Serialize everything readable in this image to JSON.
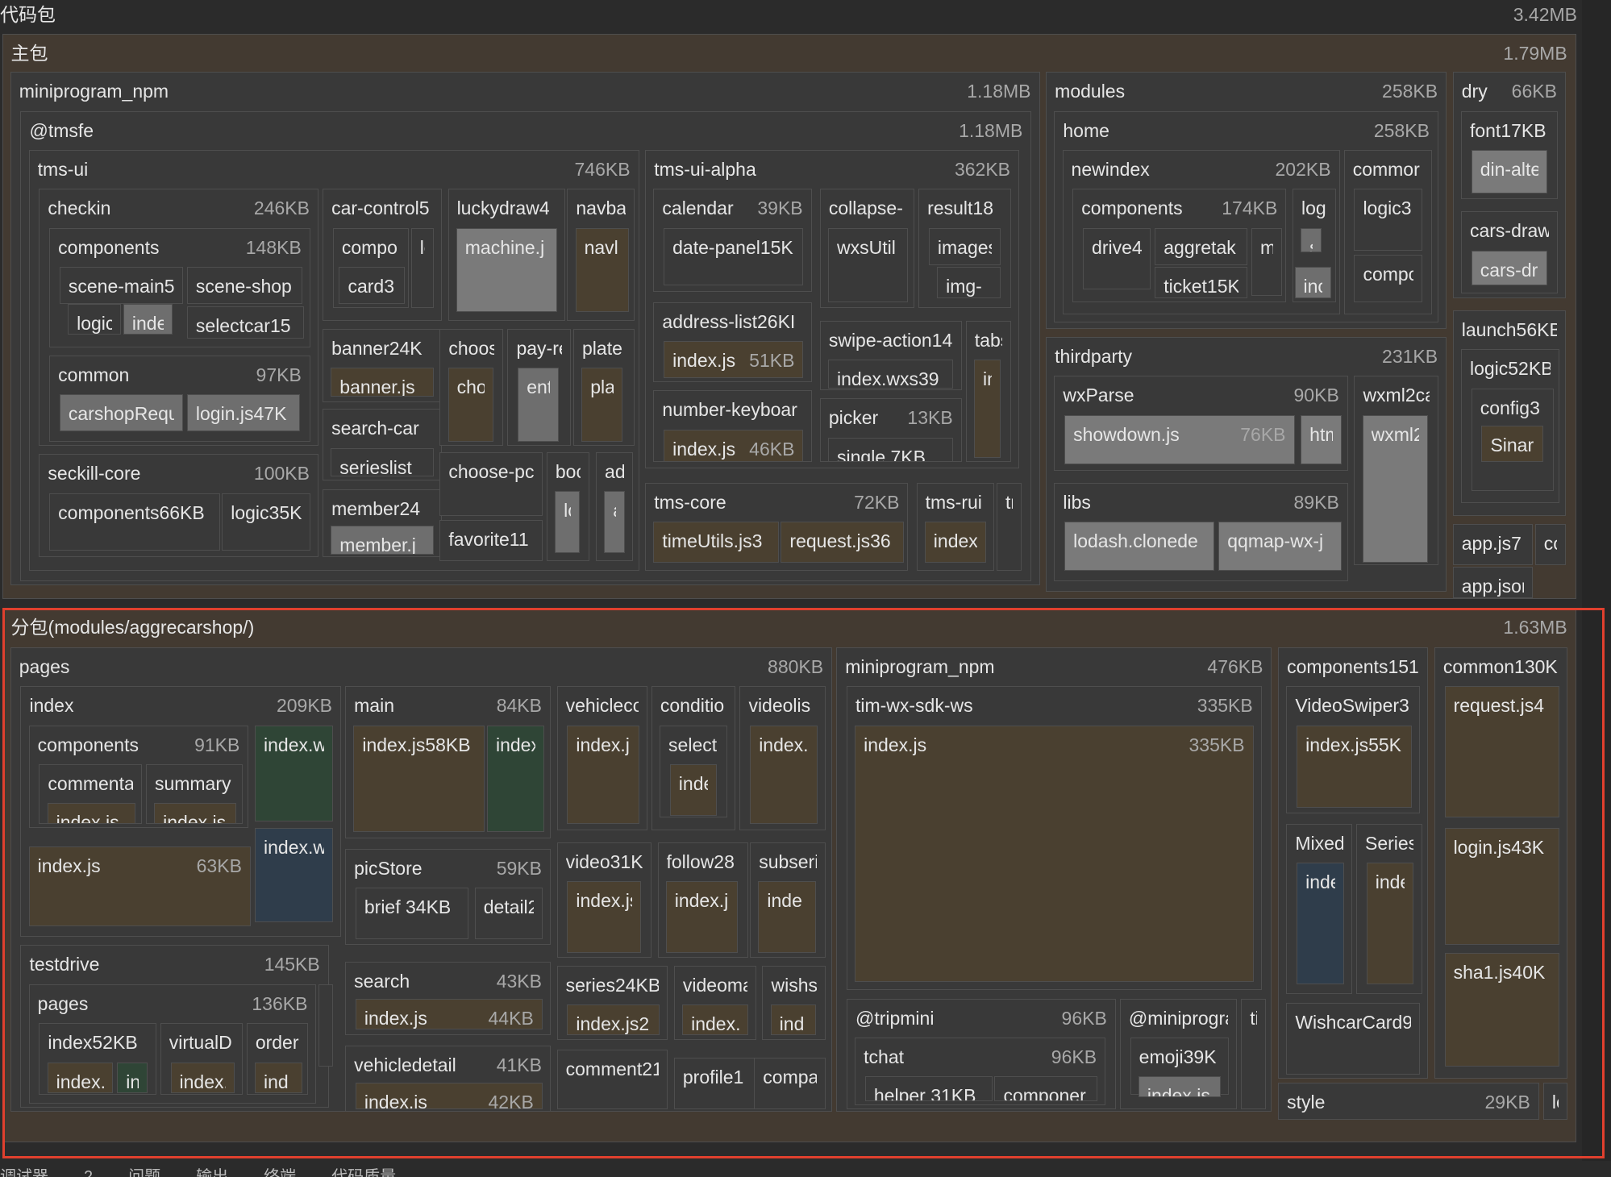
{
  "header": {
    "title": "代码包",
    "size": "3.42MB"
  },
  "nodes": [
    {
      "label": "主包",
      "size": "1.79MB",
      "color": "#433a31"
    },
    {
      "label": "miniprogram_npm",
      "size": "1.18MB"
    },
    {
      "label": "@tmsfe",
      "size": "1.18MB"
    },
    {
      "label": "tms-ui",
      "size": "746KB"
    },
    {
      "label": "checkin",
      "size": "246KB"
    },
    {
      "label": "components",
      "size": "148KB"
    },
    {
      "label": "scene-main5"
    },
    {
      "label": "scene-shop"
    },
    {
      "label": "logic"
    },
    {
      "label": "inde",
      "color": "#6e6e6e"
    },
    {
      "label": "selectcar15"
    },
    {
      "label": "common",
      "size": "97KB"
    },
    {
      "label": "carshopRequ",
      "color": "#6e6e6e"
    },
    {
      "label": "login.js47K",
      "color": "#6e6e6e"
    },
    {
      "label": "seckill-core",
      "size": "100KB"
    },
    {
      "label": "components66KB"
    },
    {
      "label": "logic35K"
    },
    {
      "label": "car-control5"
    },
    {
      "label": "compo"
    },
    {
      "label": "card3"
    },
    {
      "label": "lc"
    },
    {
      "label": "luckydraw4"
    },
    {
      "label": "machine.j",
      "color": "#7a7a7a"
    },
    {
      "label": "navba"
    },
    {
      "label": "navl",
      "color": "#4a4030"
    },
    {
      "label": "banner24K"
    },
    {
      "label": "banner.js",
      "color": "#4a4030"
    },
    {
      "label": "search-car"
    },
    {
      "label": "serieslist"
    },
    {
      "label": "member24"
    },
    {
      "label": "member.j",
      "color": "#6e6e6e"
    },
    {
      "label": "choos"
    },
    {
      "label": "cho",
      "color": "#4a4030"
    },
    {
      "label": "pay-re"
    },
    {
      "label": "enti",
      "color": "#6e6e6e"
    },
    {
      "label": "plate"
    },
    {
      "label": "pla",
      "color": "#4a4030"
    },
    {
      "label": "choose-pc"
    },
    {
      "label": "favorite11"
    },
    {
      "label": "boc"
    },
    {
      "label": "lc",
      "color": "#6e6e6e"
    },
    {
      "label": "adc"
    },
    {
      "label": "a",
      "color": "#6e6e6e"
    },
    {
      "label": "tms-ui-alpha",
      "size": "362KB"
    },
    {
      "label": "calendar",
      "size": "39KB"
    },
    {
      "label": "date-panel15K"
    },
    {
      "label": "collapse-"
    },
    {
      "label": "wxsUtil"
    },
    {
      "label": "result18"
    },
    {
      "label": "images"
    },
    {
      "label": "img-"
    },
    {
      "label": "address-list26KI"
    },
    {
      "label": "index.js",
      "size": "51KB",
      "color": "#4a4030"
    },
    {
      "label": "number-keyboar"
    },
    {
      "label": "index.js",
      "size": "46KB",
      "color": "#4a4030"
    },
    {
      "label": "swipe-action14"
    },
    {
      "label": "index.wxs39"
    },
    {
      "label": "tabs"
    },
    {
      "label": "in",
      "color": "#4a4030"
    },
    {
      "label": "picker",
      "size": "13KB"
    },
    {
      "label": "single 7KB"
    },
    {
      "label": "tms-core",
      "size": "72KB"
    },
    {
      "label": "timeUtils.js3",
      "color": "#4a4030"
    },
    {
      "label": "request.js36",
      "color": "#4a4030"
    },
    {
      "label": "tms-rui"
    },
    {
      "label": "index",
      "color": "#4a4030"
    },
    {
      "label": "tn"
    },
    {
      "label": "modules",
      "size": "258KB"
    },
    {
      "label": "home",
      "size": "258KB"
    },
    {
      "label": "newindex",
      "size": "202KB"
    },
    {
      "label": "components",
      "size": "174KB"
    },
    {
      "label": "drive4"
    },
    {
      "label": "aggretak"
    },
    {
      "label": "ticket15K"
    },
    {
      "label": "mc"
    },
    {
      "label": "log"
    },
    {
      "label": "s",
      "color": "#6e6e6e"
    },
    {
      "label": "inc",
      "color": "#6e6e6e"
    },
    {
      "label": "commor"
    },
    {
      "label": "logic3"
    },
    {
      "label": "compc"
    },
    {
      "label": "dry",
      "size": "66KB"
    },
    {
      "label": "font17KB"
    },
    {
      "label": "din-alte",
      "color": "#7a7a7a"
    },
    {
      "label": "cars-draw"
    },
    {
      "label": "cars-dr",
      "color": "#7a7a7a"
    },
    {
      "label": "launch56KB"
    },
    {
      "label": "logic52KB"
    },
    {
      "label": "config3"
    },
    {
      "label": "Sinar",
      "color": "#4a4030"
    },
    {
      "label": "app.js7"
    },
    {
      "label": "app.json"
    },
    {
      "label": "cor"
    },
    {
      "label": "thirdparty",
      "size": "231KB"
    },
    {
      "label": "wxParse",
      "size": "90KB"
    },
    {
      "label": "showdown.js",
      "size": "76KB",
      "color": "#7a7a7a"
    },
    {
      "label": "htm",
      "color": "#7a7a7a"
    },
    {
      "label": "wxml2ca"
    },
    {
      "label": "wxml2",
      "color": "#7a7a7a"
    },
    {
      "label": "libs",
      "size": "89KB"
    },
    {
      "label": "lodash.clonede",
      "color": "#7a7a7a"
    },
    {
      "label": "qqmap-wx-j",
      "color": "#7a7a7a"
    },
    {
      "label": "分包(modules/aggrecarshop/)",
      "size": "1.63MB",
      "color": "#433a31"
    },
    {
      "label": "pages",
      "size": "880KB"
    },
    {
      "label": "index",
      "size": "209KB"
    },
    {
      "label": "components",
      "size": "91KB"
    },
    {
      "label": "commenta"
    },
    {
      "label": "index.js",
      "color": "#4a4030"
    },
    {
      "label": "summary"
    },
    {
      "label": "index.js",
      "color": "#4a4030"
    },
    {
      "label": "index.w",
      "color": "#2f4536"
    },
    {
      "label": "index.w",
      "color": "#2f3d4b"
    },
    {
      "label": "index.js",
      "size": "63KB",
      "color": "#4a4030"
    },
    {
      "label": "testdrive",
      "size": "145KB"
    },
    {
      "label": "pages",
      "size": "136KB"
    },
    {
      "label": "index52KB"
    },
    {
      "label": "index.",
      "color": "#4a4030"
    },
    {
      "label": "in",
      "color": "#2f4536"
    },
    {
      "label": "virtualD"
    },
    {
      "label": "index.",
      "color": "#4a4030"
    },
    {
      "label": "order"
    },
    {
      "label": "ind",
      "color": "#4a4030"
    },
    {
      "label": "c"
    },
    {
      "label": "main",
      "size": "84KB"
    },
    {
      "label": "index.js58KB",
      "color": "#4a4030"
    },
    {
      "label": "index",
      "color": "#2f4536"
    },
    {
      "label": "picStore",
      "size": "59KB"
    },
    {
      "label": "brief 34KB"
    },
    {
      "label": "detail2"
    },
    {
      "label": "search",
      "size": "43KB"
    },
    {
      "label": "index.js",
      "size": "44KB",
      "color": "#4a4030"
    },
    {
      "label": "vehicledetail",
      "size": "41KB"
    },
    {
      "label": "index.js",
      "size": "42KB",
      "color": "#4a4030"
    },
    {
      "label": "vehicleco"
    },
    {
      "label": "index.j",
      "color": "#4a4030"
    },
    {
      "label": "conditio"
    },
    {
      "label": "select"
    },
    {
      "label": "inde",
      "color": "#4a4030"
    },
    {
      "label": "videolis"
    },
    {
      "label": "index.",
      "color": "#4a4030"
    },
    {
      "label": "video31K"
    },
    {
      "label": "index.js",
      "color": "#4a4030"
    },
    {
      "label": "follow28"
    },
    {
      "label": "index.j",
      "color": "#4a4030"
    },
    {
      "label": "subseri"
    },
    {
      "label": "inde",
      "color": "#4a4030"
    },
    {
      "label": "series24KB"
    },
    {
      "label": "index.js2",
      "color": "#4a4030"
    },
    {
      "label": "videoma"
    },
    {
      "label": "index.j",
      "color": "#4a4030"
    },
    {
      "label": "wishs"
    },
    {
      "label": "ind",
      "color": "#4a4030"
    },
    {
      "label": "comment21"
    },
    {
      "label": "profile1"
    },
    {
      "label": "compa"
    },
    {
      "label": "miniprogram_npm",
      "size": "476KB"
    },
    {
      "label": "tim-wx-sdk-ws",
      "size": "335KB"
    },
    {
      "label": "index.js",
      "size": "335KB",
      "color": "#4a4030"
    },
    {
      "label": "@tripmini",
      "size": "96KB"
    },
    {
      "label": "tchat",
      "size": "96KB"
    },
    {
      "label": "helper 31KB"
    },
    {
      "label": "componer"
    },
    {
      "label": "@miniprogra"
    },
    {
      "label": "emoji39K"
    },
    {
      "label": "index.js",
      "color": "#6e6e6e"
    },
    {
      "label": "ti"
    },
    {
      "label": "components151"
    },
    {
      "label": "VideoSwiper3"
    },
    {
      "label": "index.js55K",
      "color": "#4a4030"
    },
    {
      "label": "Mixed"
    },
    {
      "label": "inde",
      "color": "#2f3d4b"
    },
    {
      "label": "Series"
    },
    {
      "label": "inde",
      "color": "#4a4030"
    },
    {
      "label": "WishcarCard9"
    },
    {
      "label": "common130K"
    },
    {
      "label": "request.js4",
      "color": "#4a4030"
    },
    {
      "label": "login.js43K",
      "color": "#4a4030"
    },
    {
      "label": "sha1.js40K",
      "color": "#4a4030"
    },
    {
      "label": "style",
      "size": "29KB"
    },
    {
      "label": "lo"
    }
  ],
  "footer": {
    "tabs": [
      "调试器",
      "2",
      "问题",
      "输出",
      "终端",
      "代码质量"
    ]
  }
}
